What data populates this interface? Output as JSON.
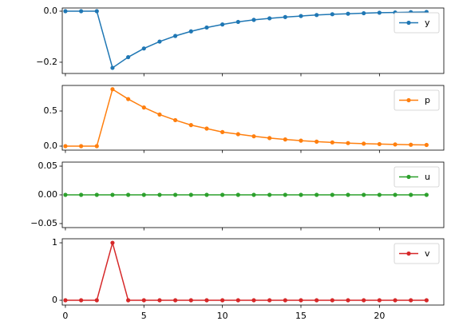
{
  "chart_data": [
    {
      "type": "line",
      "x": [
        0,
        1,
        2,
        3,
        4,
        5,
        6,
        7,
        8,
        9,
        10,
        11,
        12,
        13,
        14,
        15,
        16,
        17,
        18,
        19,
        20,
        21,
        22,
        23
      ],
      "series": [
        {
          "name": "y",
          "color": "#1f77b4",
          "values": [
            0,
            0,
            0,
            -0.222,
            -0.18,
            -0.146,
            -0.119,
            -0.097,
            -0.079,
            -0.064,
            -0.052,
            -0.042,
            -0.034,
            -0.028,
            -0.023,
            -0.019,
            -0.015,
            -0.012,
            -0.01,
            -0.008,
            -0.006,
            -0.005,
            -0.004,
            -0.003
          ]
        }
      ],
      "xlim": [
        -0.2,
        24.1
      ],
      "xticks": [
        0,
        5,
        10,
        15,
        20
      ],
      "ylim": [
        -0.244,
        0.0125
      ],
      "yticks": [
        {
          "value": 0,
          "label": "0.0"
        },
        {
          "value": -0.2,
          "label": "−0.2"
        }
      ],
      "legend": "upper right"
    },
    {
      "type": "line",
      "x": [
        0,
        1,
        2,
        3,
        4,
        5,
        6,
        7,
        8,
        9,
        10,
        11,
        12,
        13,
        14,
        15,
        16,
        17,
        18,
        19,
        20,
        21,
        22,
        23
      ],
      "series": [
        {
          "name": "p",
          "color": "#ff7f0e",
          "values": [
            0,
            0,
            0,
            0.81,
            0.67,
            0.55,
            0.45,
            0.37,
            0.3,
            0.25,
            0.2,
            0.17,
            0.14,
            0.115,
            0.095,
            0.078,
            0.064,
            0.053,
            0.043,
            0.035,
            0.029,
            0.024,
            0.02,
            0.017
          ]
        }
      ],
      "xlim": [
        -0.2,
        24.1
      ],
      "xticks": [
        0,
        5,
        10,
        15,
        20
      ],
      "ylim": [
        -0.057,
        0.864
      ],
      "yticks": [
        {
          "value": 0,
          "label": "0.0"
        },
        {
          "value": 0.5,
          "label": "0.5"
        }
      ],
      "legend": "upper right"
    },
    {
      "type": "line",
      "x": [
        0,
        1,
        2,
        3,
        4,
        5,
        6,
        7,
        8,
        9,
        10,
        11,
        12,
        13,
        14,
        15,
        16,
        17,
        18,
        19,
        20,
        21,
        22,
        23
      ],
      "series": [
        {
          "name": "u",
          "color": "#2ca02c",
          "values": [
            0,
            0,
            0,
            0,
            0,
            0,
            0,
            0,
            0,
            0,
            0,
            0,
            0,
            0,
            0,
            0,
            0,
            0,
            0,
            0,
            0,
            0,
            0,
            0
          ]
        }
      ],
      "xlim": [
        -0.2,
        24.1
      ],
      "xticks": [
        0,
        5,
        10,
        15,
        20
      ],
      "ylim": [
        -0.057,
        0.057
      ],
      "yticks": [
        {
          "value": -0.05,
          "label": "−0.05"
        },
        {
          "value": 0,
          "label": "0.00"
        },
        {
          "value": 0.05,
          "label": "0.05"
        }
      ],
      "legend": "upper right"
    },
    {
      "type": "line",
      "x": [
        0,
        1,
        2,
        3,
        4,
        5,
        6,
        7,
        8,
        9,
        10,
        11,
        12,
        13,
        14,
        15,
        16,
        17,
        18,
        19,
        20,
        21,
        22,
        23
      ],
      "series": [
        {
          "name": "v",
          "color": "#d62728",
          "values": [
            0,
            0,
            0,
            1,
            0,
            0,
            0,
            0,
            0,
            0,
            0,
            0,
            0,
            0,
            0,
            0,
            0,
            0,
            0,
            0,
            0,
            0,
            0,
            0
          ]
        }
      ],
      "xlim": [
        -0.2,
        24.1
      ],
      "xticks": [
        0,
        5,
        10,
        15,
        20
      ],
      "xtick_labels": true,
      "ylim": [
        -0.083,
        1.07
      ],
      "yticks": [
        0,
        1
      ],
      "legend": "upper right"
    }
  ]
}
